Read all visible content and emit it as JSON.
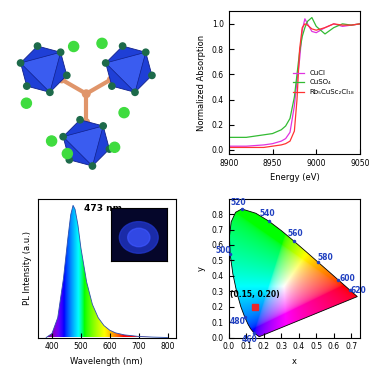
{
  "chart_data": [
    {
      "type": "structure"
    },
    {
      "type": "line",
      "xlabel": "Energy (eV)",
      "ylabel": "Normalized Absorption",
      "xlim": [
        8900,
        9050
      ],
      "xticks": [
        8900,
        8950,
        9000,
        9050
      ],
      "ylim": [
        -0.03,
        1.1
      ],
      "yticks": [
        0.0,
        0.2,
        0.4,
        0.6,
        0.8,
        1.0
      ],
      "legend": "center right",
      "x": [
        8900,
        8910,
        8920,
        8930,
        8940,
        8950,
        8960,
        8965,
        8970,
        8975,
        8978,
        8981,
        8984,
        8987,
        8990,
        8995,
        9000,
        9010,
        9020,
        9030,
        9040,
        9050
      ],
      "series": [
        {
          "name": "CuCl",
          "color": "#e033e0",
          "values": [
            0.03,
            0.03,
            0.03,
            0.035,
            0.04,
            0.05,
            0.07,
            0.09,
            0.14,
            0.35,
            0.55,
            0.72,
            0.95,
            1.04,
            1.0,
            0.94,
            0.93,
            0.97,
            1.0,
            0.98,
            0.99,
            1.0
          ]
        },
        {
          "name": "CuSO₄",
          "color": "#33bb33",
          "values": [
            0.1,
            0.1,
            0.1,
            0.11,
            0.12,
            0.13,
            0.16,
            0.19,
            0.25,
            0.42,
            0.6,
            0.78,
            0.9,
            0.97,
            1.02,
            1.05,
            0.98,
            0.92,
            0.97,
            1.0,
            0.99,
            1.0
          ]
        },
        {
          "name": "Rb₅CuSc₂Cl₁₈",
          "color": "#ff3333",
          "values": [
            0.02,
            0.02,
            0.02,
            0.02,
            0.02,
            0.03,
            0.04,
            0.05,
            0.07,
            0.15,
            0.4,
            0.8,
            0.97,
            1.0,
            0.99,
            0.96,
            0.95,
            0.97,
            1.0,
            0.99,
            0.99,
            1.0
          ]
        }
      ]
    },
    {
      "type": "spectrum",
      "xlabel": "Wavelength (nm)",
      "ylabel": "PL Intensity (a.u.)",
      "xlim": [
        350,
        830
      ],
      "xticks": [
        400,
        500,
        600,
        700,
        800
      ],
      "ylim": [
        0,
        1.05
      ],
      "tick_labels": "x",
      "annotation": {
        "text": "473 nm",
        "x": 473,
        "y": 1.0
      },
      "x": [
        380,
        400,
        420,
        440,
        455,
        465,
        473,
        480,
        490,
        500,
        520,
        540,
        560,
        580,
        600,
        620,
        650,
        700,
        750,
        800
      ],
      "values": [
        0.0,
        0.03,
        0.15,
        0.45,
        0.75,
        0.93,
        1.0,
        0.97,
        0.85,
        0.68,
        0.42,
        0.25,
        0.15,
        0.09,
        0.055,
        0.035,
        0.02,
        0.008,
        0.003,
        0.0
      ]
    },
    {
      "type": "cie",
      "xlabel": "x",
      "ylabel": "y",
      "xlim": [
        0,
        0.75
      ],
      "xticks": [
        0.0,
        0.1,
        0.2,
        0.3,
        0.4,
        0.5,
        0.6,
        0.7
      ],
      "ylim": [
        0,
        0.9
      ],
      "yticks": [
        0.0,
        0.1,
        0.2,
        0.3,
        0.4,
        0.5,
        0.6,
        0.7,
        0.8
      ],
      "locus": {
        "wavelength": [
          380,
          460,
          470,
          475,
          480,
          485,
          490,
          495,
          500,
          505,
          510,
          515,
          520,
          530,
          540,
          550,
          560,
          570,
          580,
          590,
          600,
          610,
          620,
          640,
          700
        ],
        "x": [
          0.1741,
          0.144,
          0.1241,
          0.1096,
          0.0913,
          0.0687,
          0.0454,
          0.0235,
          0.0082,
          0.0039,
          0.0139,
          0.0389,
          0.0743,
          0.1547,
          0.2296,
          0.3016,
          0.3731,
          0.4441,
          0.5125,
          0.5752,
          0.627,
          0.6658,
          0.6915,
          0.719,
          0.7347
        ],
        "y": [
          0.005,
          0.0297,
          0.0578,
          0.0868,
          0.1327,
          0.2007,
          0.295,
          0.4127,
          0.5384,
          0.6548,
          0.7502,
          0.812,
          0.8338,
          0.8059,
          0.7543,
          0.6923,
          0.6245,
          0.5547,
          0.4866,
          0.4242,
          0.3725,
          0.334,
          0.3083,
          0.2809,
          0.2653
        ]
      },
      "locus_labels": [
        460,
        480,
        500,
        520,
        540,
        560,
        580,
        600,
        620
      ],
      "point": {
        "x": 0.15,
        "y": 0.2,
        "label": "(0.15, 0.20)",
        "color": "#e8262a",
        "marker": "square"
      }
    }
  ]
}
